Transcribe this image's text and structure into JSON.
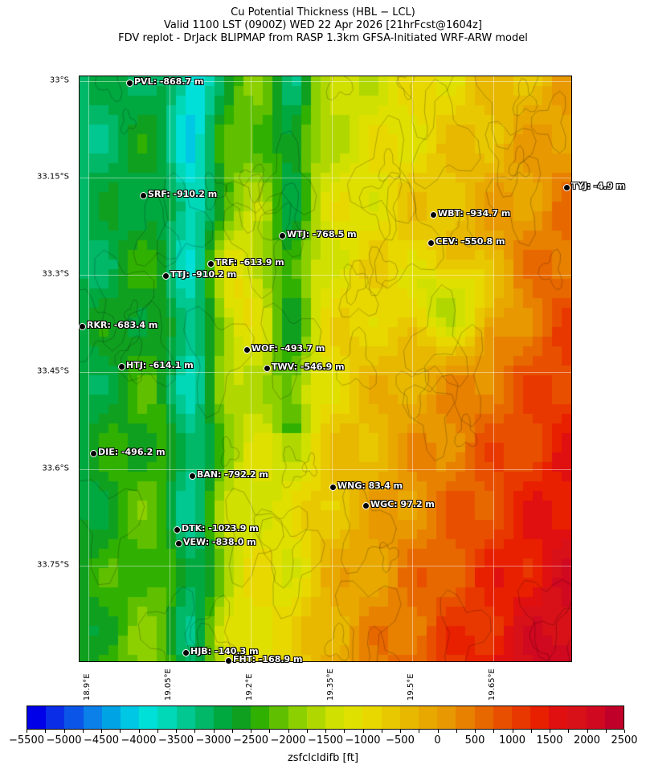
{
  "title": {
    "line1": "Cu Potential Thickness (HBL − LCL)",
    "line2": "Valid 1100 LST (0900Z) WED 22 Apr 2026 [21hrFcst@1604z]",
    "line3": "FDV replot - DrJack BLIPMAP from RASP 1.3km GFSA-Initiated WRF-ARW model"
  },
  "axes": {
    "lat_ticks": [
      "33°S",
      "33.15°S",
      "33.3°S",
      "33.45°S",
      "33.6°S",
      "33.75°S"
    ],
    "lon_ticks": [
      "18.9°E",
      "19.05°E",
      "19.2°E",
      "19.35°E",
      "19.5°E",
      "19.65°E"
    ]
  },
  "stations": [
    {
      "label": "PVL: -868.7 m"
    },
    {
      "label": "SRF: -910.2 m"
    },
    {
      "label": "TYJ: -4.9 m"
    },
    {
      "label": "WBT: -934.7 m"
    },
    {
      "label": "WTJ: -768.5 m"
    },
    {
      "label": "CEV: -550.8 m"
    },
    {
      "label": "TRF: -613.9 m"
    },
    {
      "label": "TTJ: -910.2 m"
    },
    {
      "label": "RKR: -683.4 m"
    },
    {
      "label": "WOF: -493.7 m"
    },
    {
      "label": "HTJ: -614.1 m"
    },
    {
      "label": "TWV: -546.9 m"
    },
    {
      "label": "DIE: -496.2 m"
    },
    {
      "label": "BAN: -792.2 m"
    },
    {
      "label": "WNG: 83.4 m"
    },
    {
      "label": "WGC: 97.2 m"
    },
    {
      "label": "DTK: -1023.9 m"
    },
    {
      "label": "VEW: -838.0 m"
    },
    {
      "label": "HJB: -140.3 m"
    },
    {
      "label": "FHT: -168.9 m"
    }
  ],
  "colorbar": {
    "label": "zsfclcldifb [ft]",
    "min": -5500,
    "max": 2500,
    "step": 250,
    "tick_labels": [
      "−5500",
      "−5000",
      "−4500",
      "−4000",
      "−3500",
      "−3000",
      "−2500",
      "−2000",
      "−1500",
      "−1000",
      "−500",
      "0",
      "500",
      "1000",
      "1500",
      "2000",
      "2500"
    ],
    "colors": [
      "#0000e8",
      "#0a2ee8",
      "#0b55e8",
      "#0a80e8",
      "#00a4e4",
      "#00c8e4",
      "#00e0d8",
      "#00d8b8",
      "#00c890",
      "#00b868",
      "#00a840",
      "#10a020",
      "#30b000",
      "#60c000",
      "#8cd000",
      "#b0d800",
      "#d0e000",
      "#e0e000",
      "#e8d800",
      "#e8c800",
      "#e8b800",
      "#e8a800",
      "#e89800",
      "#e88000",
      "#e86800",
      "#e85000",
      "#e83800",
      "#e82000",
      "#e01010",
      "#d81018",
      "#d00820",
      "#c00028"
    ]
  }
}
